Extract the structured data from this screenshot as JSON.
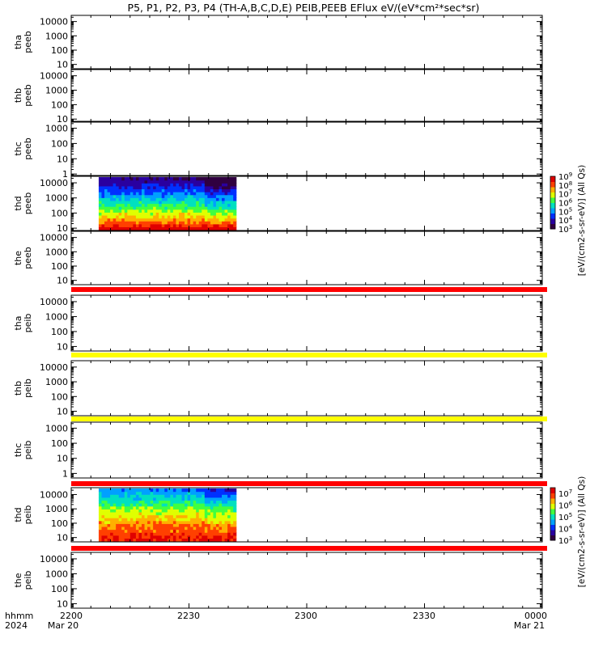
{
  "chart_data": {
    "type": "heatmap",
    "title": "P5, P1, P2, P3, P4 (TH-A,B,C,D,E) PEIB,PEEB EFlux eV/(eV*cm²*sec*sr)",
    "x_axis": {
      "time_range": [
        "2024-03-20 22:00",
        "2024-03-21 00:00"
      ],
      "ticks": [
        "2200",
        "2230",
        "2300",
        "2330",
        "0000"
      ],
      "date_labels": [
        "Mar 20",
        "Mar 21"
      ],
      "row_labels": [
        "hhmm",
        "2024"
      ]
    },
    "panels": [
      {
        "id": "tha-peeb",
        "ylabel": [
          "tha",
          "peeb"
        ],
        "ticks": [
          "10000",
          "1000",
          "100",
          "10"
        ],
        "ylim": [
          5,
          27000
        ],
        "log": true,
        "data": false
      },
      {
        "id": "thb-peeb",
        "ylabel": [
          "thb",
          "peeb"
        ],
        "ticks": [
          "10000",
          "1000",
          "100",
          "10"
        ],
        "ylim": [
          7,
          27000
        ],
        "log": true,
        "data": false
      },
      {
        "id": "thc-peeb",
        "ylabel": [
          "thc",
          "peeb"
        ],
        "ticks": [
          "1000",
          "100",
          "10",
          "1"
        ],
        "ylim": [
          0.8,
          2500
        ],
        "log": true,
        "data": false
      },
      {
        "id": "thd-peeb",
        "ylabel": [
          "thd",
          "peeb"
        ],
        "ticks": [
          "10000",
          "1000",
          "100",
          "10"
        ],
        "ylim": [
          7,
          27000
        ],
        "log": true,
        "data": true,
        "time_extent": [
          "2207",
          "2242"
        ],
        "colorbar": "peeb"
      },
      {
        "id": "the-peeb",
        "ylabel": [
          "the",
          "peeb"
        ],
        "ticks": [
          "10000",
          "1000",
          "100",
          "10"
        ],
        "ylim": [
          5,
          27000
        ],
        "log": true,
        "data": false
      },
      {
        "id": "tha-peib",
        "ylabel": [
          "tha",
          "peib"
        ],
        "ticks": [
          "10000",
          "1000",
          "100",
          "10"
        ],
        "ylim": [
          5,
          27000
        ],
        "log": true,
        "data": false
      },
      {
        "id": "thb-peib",
        "ylabel": [
          "thb",
          "peib"
        ],
        "ticks": [
          "10000",
          "1000",
          "100",
          "10"
        ],
        "ylim": [
          5,
          27000
        ],
        "log": true,
        "data": false
      },
      {
        "id": "thc-peib",
        "ylabel": [
          "thc",
          "peib"
        ],
        "ticks": [
          "1000",
          "100",
          "10",
          "1"
        ],
        "ylim": [
          0.5,
          2500
        ],
        "log": true,
        "data": false
      },
      {
        "id": "thd-peib",
        "ylabel": [
          "thd",
          "peib"
        ],
        "ticks": [
          "10000",
          "1000",
          "100",
          "10"
        ],
        "ylim": [
          5,
          30000
        ],
        "log": true,
        "data": true,
        "time_extent": [
          "2207",
          "2242"
        ],
        "colorbar": "peib"
      },
      {
        "id": "the-peib",
        "ylabel": [
          "the",
          "peib"
        ],
        "ticks": [
          "10000",
          "1000",
          "100",
          "10"
        ],
        "ylim": [
          5,
          27000
        ],
        "log": true,
        "data": false
      }
    ],
    "flag_bars": [
      {
        "after_panel": "the-peeb",
        "color": "#ff0000"
      },
      {
        "after_panel": "tha-peib",
        "color": "#ffff00"
      },
      {
        "after_panel": "thb-peib",
        "color": "#ffff00"
      },
      {
        "after_panel": "thc-peib",
        "color": "#ff0000"
      },
      {
        "after_panel": "thd-peib",
        "color": "#ff0000"
      }
    ],
    "colorbars": {
      "peeb": {
        "label": "[eV/(cm2-s-sr-eV)] (All Qs)",
        "range": [
          1000,
          1000000000
        ],
        "tick_exponents": [
          9,
          8,
          7,
          6,
          5,
          4,
          3
        ]
      },
      "peib": {
        "label": "[eV/(cm2-s-sr-eV)] (All Qs)",
        "range": [
          1000,
          30000000
        ],
        "tick_exponents": [
          7,
          6,
          5,
          4,
          3
        ]
      }
    },
    "colormap": [
      "#300040",
      "#2a00a0",
      "#0030ff",
      "#00a0ff",
      "#00e0c0",
      "#40ff40",
      "#e0ff00",
      "#ffb000",
      "#ff4000",
      "#e00000"
    ]
  }
}
